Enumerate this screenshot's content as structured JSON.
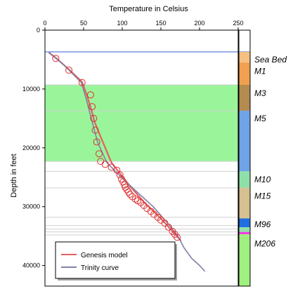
{
  "chart_data": {
    "type": "line",
    "xlabel": "Temperature in Celsius",
    "ylabel": "Depth in feet",
    "xlim": [
      0,
      250
    ],
    "ylim": [
      0,
      43500
    ],
    "y_inverted": true,
    "x_axis_position": "top",
    "x_ticks": [
      0,
      50,
      100,
      150,
      200,
      250
    ],
    "y_ticks": [
      0,
      10000,
      20000,
      30000,
      40000
    ],
    "grid": false,
    "legend_position": "bottom-left",
    "sea_bed_line_depth": 3700,
    "highlight_band": {
      "y_from": 9300,
      "y_to": 22300,
      "color": "#9af59a"
    },
    "horizontal_lines": [
      9300,
      13700,
      22300,
      24000,
      26800,
      31800,
      33200,
      33800,
      34300,
      34800
    ],
    "series": [
      {
        "name": "Genesis model",
        "color": "#e36060",
        "x": [
          5,
          15,
          32,
          48,
          54,
          60,
          64,
          70,
          78,
          86,
          95,
          110,
          130,
          150,
          165,
          172,
          176
        ],
        "y": [
          3800,
          4800,
          6800,
          8800,
          11000,
          13500,
          15500,
          17500,
          20000,
          22500,
          24000,
          26500,
          29500,
          32000,
          34200,
          35200,
          35800
        ]
      },
      {
        "name": "Trinity curve",
        "color": "#8080a8",
        "x": [
          5,
          25,
          47,
          53,
          60,
          68,
          80,
          95,
          115,
          140,
          160,
          172,
          180,
          190,
          200,
          207
        ],
        "y": [
          3800,
          6000,
          8900,
          11500,
          15000,
          19000,
          22500,
          24500,
          27000,
          30000,
          33000,
          35000,
          37000,
          38800,
          40000,
          41000
        ]
      },
      {
        "name": "observations",
        "type": "scatter",
        "color": "#e03030",
        "x": [
          14,
          31,
          48,
          59,
          61,
          63,
          65,
          67,
          70,
          72,
          78,
          86,
          93,
          97,
          99,
          101,
          103,
          104,
          106,
          108,
          110,
          113,
          117,
          120,
          124,
          128,
          132,
          137,
          141,
          146,
          150,
          155,
          160,
          165,
          168,
          171
        ],
        "y": [
          4800,
          6800,
          8900,
          11000,
          13000,
          15000,
          17000,
          19000,
          21000,
          22300,
          22800,
          23300,
          23800,
          24600,
          25300,
          25800,
          26300,
          26700,
          27100,
          27500,
          27900,
          28300,
          28700,
          29000,
          29300,
          29800,
          30300,
          30800,
          31300,
          31800,
          32300,
          32800,
          33500,
          34200,
          34700,
          35200
        ]
      }
    ],
    "formations": [
      {
        "name": "Sea Bed",
        "top": 3700,
        "bottom": 5500,
        "color": "#f6c080"
      },
      {
        "name": "M1",
        "top": 5500,
        "bottom": 9300,
        "color": "#f0a050"
      },
      {
        "name": "M3",
        "top": 9300,
        "bottom": 13700,
        "color": "#b38a4f"
      },
      {
        "name": "M5",
        "top": 13700,
        "bottom": 24000,
        "color": "#6fa3e8"
      },
      {
        "name": "M10",
        "top": 24000,
        "bottom": 26800,
        "color": "#8fe0a8"
      },
      {
        "name": "M15",
        "top": 26800,
        "bottom": 31800,
        "color": "#d6bf90"
      },
      {
        "name": "",
        "top": 31800,
        "bottom": 32000,
        "color": "#d6bf90"
      },
      {
        "name": "M96",
        "top": 32000,
        "bottom": 33500,
        "color": "#1f6fe0"
      },
      {
        "name": "",
        "top": 33500,
        "bottom": 34300,
        "color": "#8fe0a8"
      },
      {
        "name": "",
        "top": 34300,
        "bottom": 34700,
        "color": "#f040e0"
      },
      {
        "name": "M206",
        "top": 34700,
        "bottom": 43500,
        "color": "#a0f080"
      }
    ],
    "formation_label_depths": {
      "Sea Bed": 5000,
      "M1": 7000,
      "M3": 10700,
      "M5": 15000,
      "M10": 25400,
      "M15": 28200,
      "M96": 33000,
      "M206": 36300
    }
  }
}
